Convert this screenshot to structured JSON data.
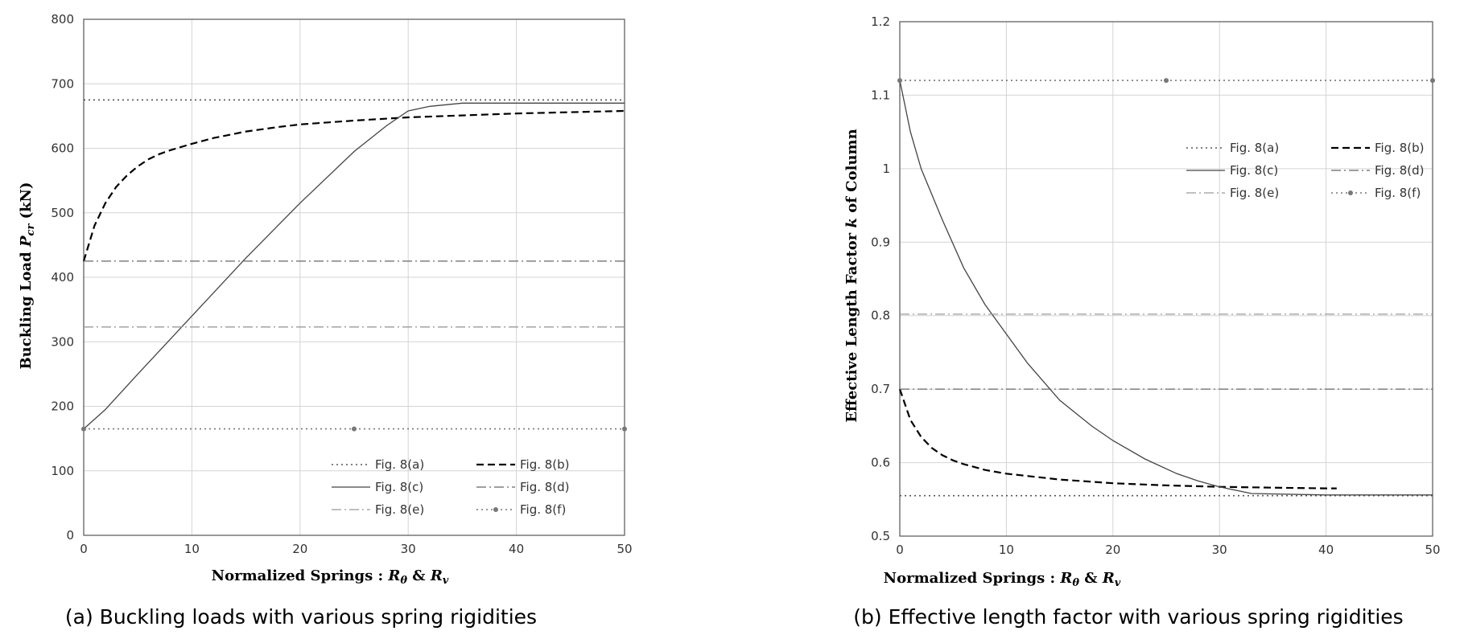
{
  "chart_data": [
    {
      "type": "line",
      "caption": "(a) Buckling loads with various spring rigidities",
      "xlabel": "Normalized Springs : R θ  & R v",
      "ylabel": "Buckling Load P cr (kN)",
      "xlim": [
        0,
        50
      ],
      "ylim": [
        0,
        800
      ],
      "xticks": [
        0,
        10,
        20,
        30,
        40,
        50
      ],
      "yticks": [
        0,
        100,
        200,
        300,
        400,
        500,
        600,
        700,
        800
      ],
      "grid": true,
      "legend_position": "bottom-right",
      "series": [
        {
          "name": "Fig. 8(a)",
          "style": "dotted",
          "color": "#555555",
          "x": [
            0,
            50
          ],
          "y": [
            675,
            675
          ]
        },
        {
          "name": "Fig. 8(b)",
          "style": "dashed",
          "color": "#000000",
          "x": [
            0,
            1,
            2,
            3,
            4,
            5,
            6,
            7,
            8,
            10,
            12,
            15,
            18,
            20,
            25,
            30,
            35,
            40,
            45,
            50
          ],
          "y": [
            425,
            480,
            515,
            540,
            558,
            572,
            583,
            591,
            597,
            607,
            616,
            626,
            633,
            637,
            643,
            648,
            651,
            654,
            656,
            658
          ]
        },
        {
          "name": "Fig. 8(c)",
          "style": "solid",
          "color": "#444444",
          "x": [
            0,
            2,
            5,
            10,
            15,
            20,
            25,
            28,
            30,
            32,
            35,
            40,
            50
          ],
          "y": [
            165,
            195,
            250,
            340,
            430,
            515,
            595,
            635,
            658,
            665,
            670,
            670,
            670
          ]
        },
        {
          "name": "Fig. 8(d)",
          "style": "dashdot",
          "color": "#666666",
          "x": [
            0,
            50
          ],
          "y": [
            425,
            425
          ]
        },
        {
          "name": "Fig. 8(e)",
          "style": "dashdot",
          "color": "#999999",
          "x": [
            0,
            50
          ],
          "y": [
            323,
            323
          ]
        },
        {
          "name": "Fig. 8(f)",
          "style": "dotted-marker",
          "color": "#777777",
          "x": [
            0,
            25,
            50
          ],
          "y": [
            165,
            165,
            165
          ]
        }
      ]
    },
    {
      "type": "line",
      "caption": "(b) Effective length factor with various spring rigidities",
      "xlabel": "Normalized Springs : R θ  & R v",
      "ylabel": "Effective Length Factor k  of Column",
      "xlim": [
        0,
        50
      ],
      "ylim": [
        0.5,
        1.2
      ],
      "xticks": [
        0,
        10,
        20,
        30,
        40,
        50
      ],
      "yticks": [
        0.5,
        0.6,
        0.7,
        0.8,
        0.9,
        1,
        1.1,
        1.2
      ],
      "grid": true,
      "legend_position": "top-right",
      "series": [
        {
          "name": "Fig. 8(a)",
          "style": "dotted",
          "color": "#555555",
          "x": [
            0,
            50
          ],
          "y": [
            0.555,
            0.555
          ]
        },
        {
          "name": "Fig. 8(b)",
          "style": "dashed",
          "color": "#000000",
          "x": [
            0,
            1,
            2,
            3,
            4,
            5,
            6,
            8,
            10,
            15,
            20,
            25,
            30,
            35,
            40,
            41
          ],
          "y": [
            0.7,
            0.658,
            0.635,
            0.62,
            0.61,
            0.603,
            0.598,
            0.59,
            0.585,
            0.577,
            0.572,
            0.569,
            0.567,
            0.566,
            0.565,
            0.565
          ]
        },
        {
          "name": "Fig. 8(c)",
          "style": "solid",
          "color": "#444444",
          "x": [
            0,
            1,
            2,
            4,
            6,
            8,
            10,
            12,
            15,
            18,
            20,
            23,
            26,
            28,
            30,
            33,
            40,
            50
          ],
          "y": [
            1.12,
            1.05,
            1.0,
            0.93,
            0.865,
            0.815,
            0.775,
            0.735,
            0.685,
            0.65,
            0.63,
            0.605,
            0.585,
            0.575,
            0.567,
            0.558,
            0.556,
            0.556
          ]
        },
        {
          "name": "Fig. 8(d)",
          "style": "dashdot",
          "color": "#666666",
          "x": [
            0,
            50
          ],
          "y": [
            0.7,
            0.7
          ]
        },
        {
          "name": "Fig. 8(e)",
          "style": "dashdot",
          "color": "#999999",
          "x": [
            0,
            50
          ],
          "y": [
            0.802,
            0.802
          ]
        },
        {
          "name": "Fig. 8(f)",
          "style": "dotted-marker",
          "color": "#777777",
          "x": [
            0,
            25,
            50
          ],
          "y": [
            1.12,
            1.12,
            1.12
          ]
        }
      ]
    }
  ]
}
